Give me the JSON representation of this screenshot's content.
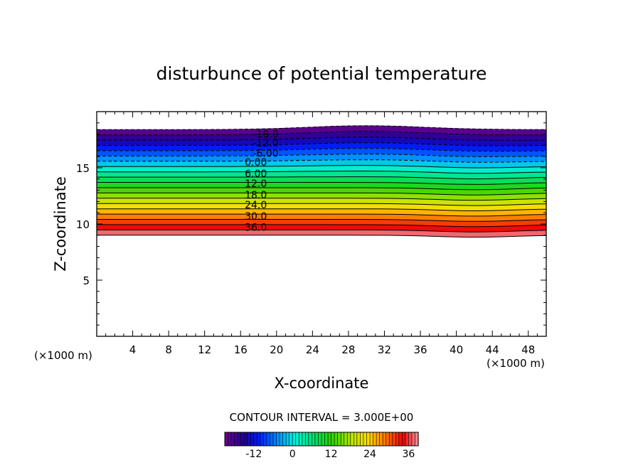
{
  "chart_data": {
    "type": "contour",
    "title": "disturbunce of potential temperature",
    "xlabel": "X-coordinate",
    "ylabel": "Z-coordinate",
    "x_unit": "(×1000 m)",
    "y_unit": "(×1000 m)",
    "xlim": [
      0,
      50
    ],
    "ylim": [
      0,
      20
    ],
    "x_ticks": [
      4,
      8,
      12,
      16,
      20,
      24,
      28,
      32,
      36,
      40,
      44,
      48
    ],
    "y_ticks": [
      5,
      10,
      15
    ],
    "contour_interval_text": "CONTOUR INTERVAL = 3.000E+00",
    "contour_interval": 3.0,
    "value_range": [
      -21,
      39
    ],
    "field_extent_z": [
      9.0,
      18.4
    ],
    "contour_labels": [
      {
        "value": -18,
        "text": "-18.0",
        "x": 18.8,
        "z": 18.0
      },
      {
        "value": -12,
        "text": "-12.0",
        "x": 18.8,
        "z": 17.2
      },
      {
        "value": -6,
        "text": "-6.00",
        "x": 18.8,
        "z": 16.3
      },
      {
        "value": 0,
        "text": "0.00",
        "x": 17.7,
        "z": 15.5
      },
      {
        "value": 6,
        "text": "6.00",
        "x": 17.7,
        "z": 14.5
      },
      {
        "value": 12,
        "text": "12.0",
        "x": 17.7,
        "z": 13.6
      },
      {
        "value": 18,
        "text": "18.0",
        "x": 17.7,
        "z": 12.6
      },
      {
        "value": 24,
        "text": "24.0",
        "x": 17.7,
        "z": 11.7
      },
      {
        "value": 30,
        "text": "30.0",
        "x": 17.7,
        "z": 10.7
      },
      {
        "value": 36,
        "text": "36.0",
        "x": 17.7,
        "z": 9.7
      }
    ],
    "colorbar": {
      "tick_labels": [
        "-12",
        "0",
        "12",
        "24",
        "36"
      ],
      "tick_values": [
        -12,
        0,
        12,
        24,
        36
      ],
      "range": [
        -21,
        39
      ]
    },
    "grid": false,
    "colormap": "rainbow (purple-blue-cyan-green-yellow-red-pink)",
    "negative_contours": "dashed",
    "positive_contours": "solid"
  }
}
